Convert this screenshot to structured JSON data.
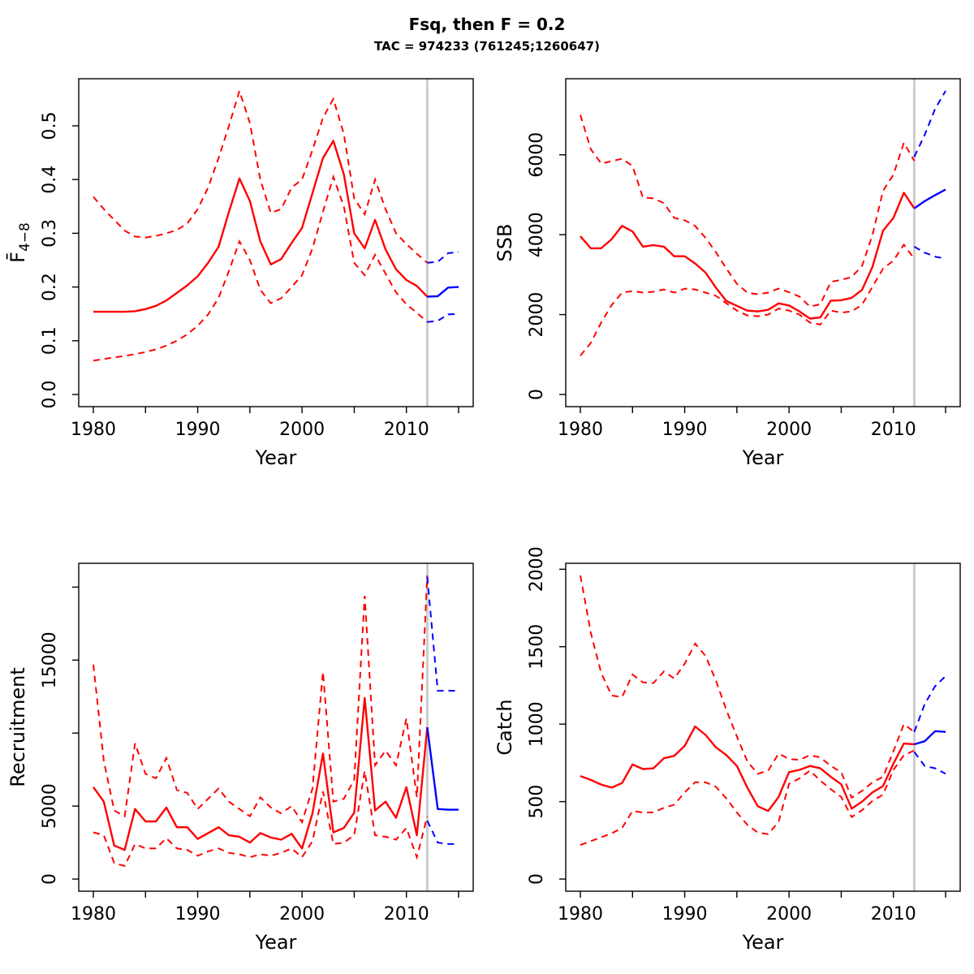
{
  "header": {
    "title": "Fsq, then F = 0.2",
    "subtitle": "TAC = 974233 (761245;1260647)"
  },
  "styles": {
    "historic_color": "#ff0000",
    "projection_color": "#0000ff",
    "divider_color": "#cdcdcd",
    "axis_color": "#000000",
    "background": "#ffffff"
  },
  "chart_data": [
    {
      "id": "fbar",
      "type": "line",
      "title": "",
      "xlabel": "Year",
      "ylabel_main": "F̄",
      "ylabel_sub": "4−8",
      "xlim": [
        1978.6,
        2016.4
      ],
      "ylim": [
        -0.0226,
        0.5876
      ],
      "xticks": [
        1980,
        1985,
        1990,
        1995,
        2000,
        2005,
        2010,
        2015
      ],
      "xticklabels": [
        "1980",
        "",
        "1990",
        "",
        "2000",
        "",
        "2010",
        ""
      ],
      "yticks": [
        0.0,
        0.1,
        0.2,
        0.3,
        0.4,
        0.5
      ],
      "yticklabels": [
        "0.0",
        "0.1",
        "0.2",
        "0.3",
        "0.4",
        "0.5"
      ],
      "divider_year": 2012,
      "hist_years_start": 1980,
      "median": [
        0.154,
        0.154,
        0.154,
        0.154,
        0.155,
        0.159,
        0.165,
        0.175,
        0.189,
        0.203,
        0.22,
        0.245,
        0.275,
        0.34,
        0.402,
        0.36,
        0.285,
        0.242,
        0.252,
        0.282,
        0.31,
        0.375,
        0.44,
        0.472,
        0.41,
        0.3,
        0.272,
        0.325,
        0.27,
        0.233,
        0.213,
        0.202,
        0.182
      ],
      "upper": [
        0.368,
        0.345,
        0.325,
        0.305,
        0.294,
        0.292,
        0.295,
        0.3,
        0.306,
        0.318,
        0.345,
        0.385,
        0.44,
        0.5,
        0.565,
        0.505,
        0.4,
        0.338,
        0.345,
        0.385,
        0.4,
        0.455,
        0.515,
        0.55,
        0.485,
        0.365,
        0.335,
        0.4,
        0.345,
        0.3,
        0.28,
        0.262,
        0.245
      ],
      "lower": [
        0.063,
        0.066,
        0.069,
        0.072,
        0.075,
        0.079,
        0.084,
        0.091,
        0.1,
        0.112,
        0.128,
        0.149,
        0.18,
        0.23,
        0.285,
        0.25,
        0.195,
        0.17,
        0.179,
        0.2,
        0.222,
        0.272,
        0.34,
        0.405,
        0.35,
        0.245,
        0.222,
        0.26,
        0.225,
        0.19,
        0.168,
        0.152,
        0.135
      ],
      "proj_years_start": 2012,
      "proj_median": [
        0.182,
        0.183,
        0.199,
        0.2
      ],
      "proj_upper": [
        0.245,
        0.247,
        0.263,
        0.265
      ],
      "proj_lower": [
        0.135,
        0.137,
        0.149,
        0.15
      ]
    },
    {
      "id": "ssb",
      "type": "line",
      "title": "",
      "xlabel": "Year",
      "ylabel_main": "SSB",
      "ylabel_sub": "",
      "xlim": [
        1978.6,
        2016.4
      ],
      "ylim": [
        -304,
        7904
      ],
      "xticks": [
        1980,
        1985,
        1990,
        1995,
        2000,
        2005,
        2010,
        2015
      ],
      "xticklabels": [
        "1980",
        "",
        "1990",
        "",
        "2000",
        "",
        "2010",
        ""
      ],
      "yticks": [
        0,
        2000,
        4000,
        6000
      ],
      "yticklabels": [
        "0",
        "2000",
        "4000",
        "6000"
      ],
      "divider_year": 2012,
      "hist_years_start": 1980,
      "median": [
        3960,
        3660,
        3660,
        3890,
        4220,
        4080,
        3700,
        3740,
        3700,
        3460,
        3460,
        3280,
        3050,
        2670,
        2340,
        2220,
        2100,
        2080,
        2120,
        2280,
        2230,
        2080,
        1900,
        1930,
        2350,
        2360,
        2420,
        2620,
        3200,
        4100,
        4420,
        5050,
        4660
      ],
      "upper": [
        7000,
        6140,
        5780,
        5840,
        5900,
        5720,
        4930,
        4910,
        4790,
        4420,
        4360,
        4220,
        3920,
        3560,
        3150,
        2770,
        2550,
        2510,
        2550,
        2650,
        2560,
        2450,
        2200,
        2260,
        2820,
        2870,
        2940,
        3220,
        4000,
        5100,
        5500,
        6300,
        5850
      ],
      "lower": [
        970,
        1290,
        1800,
        2240,
        2550,
        2590,
        2550,
        2570,
        2630,
        2550,
        2650,
        2630,
        2550,
        2470,
        2280,
        2100,
        1980,
        1960,
        2000,
        2150,
        2100,
        2000,
        1800,
        1750,
        2100,
        2050,
        2080,
        2250,
        2700,
        3150,
        3350,
        3750,
        3400
      ],
      "proj_years_start": 2012,
      "proj_median": [
        4660,
        4840,
        4990,
        5130
      ],
      "proj_upper": [
        5950,
        6500,
        7150,
        7600
      ],
      "proj_lower": [
        3700,
        3550,
        3450,
        3400
      ]
    },
    {
      "id": "recruitment",
      "type": "line",
      "title": "",
      "xlabel": "Year",
      "ylabel_main": "Recruitment",
      "ylabel_sub": "",
      "xlim": [
        1978.6,
        2016.4
      ],
      "ylim": [
        -832,
        21632
      ],
      "xticks": [
        1980,
        1985,
        1990,
        1995,
        2000,
        2005,
        2010,
        2015
      ],
      "xticklabels": [
        "1980",
        "",
        "1990",
        "",
        "2000",
        "",
        "2010",
        ""
      ],
      "yticks": [
        0,
        5000,
        10000,
        15000,
        20000
      ],
      "yticklabels": [
        "0",
        "5000",
        "",
        "15000",
        ""
      ],
      "divider_year": 2012,
      "hist_years_start": 1980,
      "median": [
        6300,
        5300,
        2300,
        2000,
        4800,
        3950,
        3950,
        4900,
        3550,
        3550,
        2750,
        3150,
        3550,
        3000,
        2900,
        2500,
        3150,
        2850,
        2700,
        3100,
        2100,
        4500,
        8600,
        3200,
        3500,
        4550,
        12400,
        4700,
        5300,
        4200,
        6300,
        3000,
        10400
      ],
      "upper": [
        14700,
        8100,
        4700,
        4300,
        9300,
        7200,
        6900,
        8300,
        6100,
        5900,
        4800,
        5500,
        6200,
        5300,
        4800,
        4300,
        5600,
        4900,
        4500,
        5000,
        3900,
        6200,
        14200,
        5300,
        5500,
        6800,
        19400,
        7800,
        8800,
        7800,
        11000,
        5600,
        20800
      ],
      "lower": [
        3200,
        3000,
        1100,
        900,
        2400,
        2100,
        2100,
        2800,
        2100,
        2000,
        1600,
        1900,
        2100,
        1800,
        1700,
        1500,
        1700,
        1600,
        1800,
        2100,
        1500,
        2600,
        6000,
        2400,
        2500,
        3000,
        7400,
        3000,
        2900,
        2700,
        3500,
        1500,
        4300
      ],
      "proj_years_start": 2012,
      "proj_median": [
        10400,
        4800,
        4750,
        4750
      ],
      "proj_upper": [
        20700,
        12900,
        12900,
        12900
      ],
      "proj_lower": [
        4000,
        2500,
        2400,
        2400
      ]
    },
    {
      "id": "catch",
      "type": "line",
      "title": "",
      "xlabel": "Year",
      "ylabel_main": "Catch",
      "ylabel_sub": "",
      "xlim": [
        1978.6,
        2016.4
      ],
      "ylim": [
        -78.4,
        2038.4
      ],
      "xticks": [
        1980,
        1985,
        1990,
        1995,
        2000,
        2005,
        2010,
        2015
      ],
      "xticklabels": [
        "1980",
        "",
        "1990",
        "",
        "2000",
        "",
        "2010",
        ""
      ],
      "yticks": [
        0,
        500,
        1000,
        1500,
        2000
      ],
      "yticklabels": [
        "0",
        "500",
        "1000",
        "1500",
        "2000"
      ],
      "divider_year": 2012,
      "hist_years_start": 1980,
      "median": [
        665,
        640,
        610,
        590,
        620,
        740,
        710,
        715,
        780,
        795,
        860,
        985,
        930,
        850,
        800,
        730,
        590,
        470,
        440,
        530,
        690,
        705,
        730,
        715,
        660,
        612,
        455,
        500,
        560,
        600,
        745,
        875,
        870
      ],
      "upper": [
        1960,
        1590,
        1330,
        1185,
        1175,
        1320,
        1270,
        1265,
        1340,
        1295,
        1390,
        1520,
        1440,
        1280,
        1090,
        920,
        760,
        680,
        700,
        810,
        775,
        770,
        800,
        785,
        730,
        690,
        525,
        570,
        625,
        660,
        825,
        1000,
        950
      ],
      "lower": [
        220,
        245,
        270,
        295,
        330,
        440,
        430,
        430,
        460,
        480,
        560,
        625,
        625,
        595,
        520,
        430,
        350,
        300,
        290,
        370,
        615,
        650,
        700,
        635,
        580,
        530,
        400,
        445,
        505,
        545,
        705,
        800,
        830
      ],
      "proj_years_start": 2012,
      "proj_median": [
        870,
        890,
        955,
        950
      ],
      "proj_upper": [
        950,
        1130,
        1245,
        1310
      ],
      "proj_lower": [
        820,
        730,
        715,
        680
      ]
    }
  ]
}
